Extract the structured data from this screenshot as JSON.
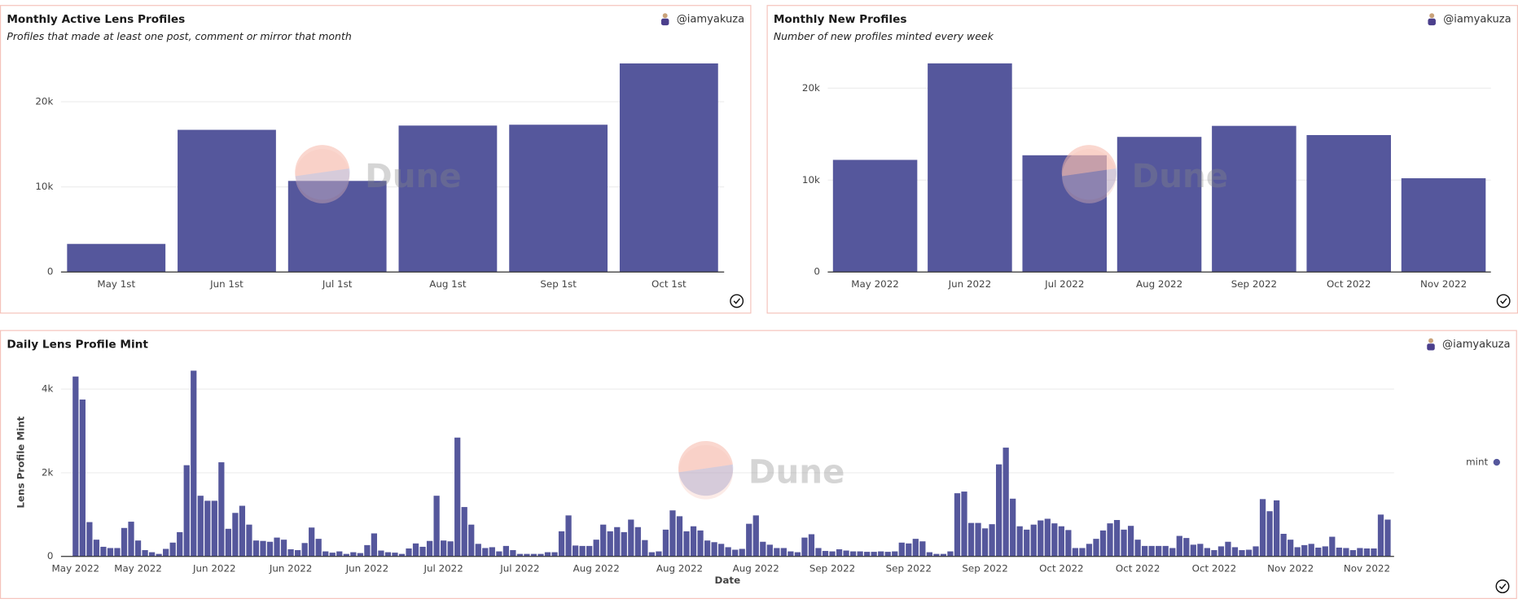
{
  "chart_data": [
    {
      "type": "bar",
      "title": "Monthly Active Lens Profiles",
      "subtitle": "Profiles that made at least one post, comment or mirror that month",
      "author": "@iamyakuza",
      "watermark": "Dune",
      "categories": [
        "May 1st",
        "Jun 1st",
        "Jul 1st",
        "Aug 1st",
        "Sep 1st",
        "Oct 1st"
      ],
      "values": [
        3300,
        16700,
        10700,
        17200,
        17300,
        24500
      ],
      "color": "#55579c",
      "ylim": [
        0,
        25000
      ],
      "yticks": [
        0,
        {
          "value": 10000,
          "label": "10k"
        },
        {
          "value": 20000,
          "label": "20k"
        }
      ],
      "grid": true
    },
    {
      "type": "bar",
      "title": "Monthly New Profiles",
      "subtitle": "Number of new profiles minted every week",
      "author": "@iamyakuza",
      "watermark": "Dune",
      "categories": [
        "May 2022",
        "Jun 2022",
        "Jul 2022",
        "Aug 2022",
        "Sep 2022",
        "Oct 2022",
        "Nov 2022"
      ],
      "values": [
        12200,
        22700,
        12700,
        14700,
        15900,
        14900,
        10200
      ],
      "color": "#55579c",
      "ylim": [
        0,
        23000
      ],
      "yticks": [
        0,
        {
          "value": 10000,
          "label": "10k"
        },
        {
          "value": 20000,
          "label": "20k"
        }
      ],
      "grid": true
    },
    {
      "type": "bar",
      "title": "Daily Lens Profile Mint",
      "author": "@iamyakuza",
      "watermark": "Dune",
      "x_label": "Date",
      "y_label": "Lens Profile Mint",
      "legend": "right",
      "categories": [
        "May 2022",
        null,
        null,
        null,
        null,
        null,
        null,
        null,
        null,
        "May 2022",
        null,
        null,
        null,
        null,
        null,
        null,
        null,
        null,
        null,
        null,
        "Jun 2022",
        null,
        null,
        null,
        null,
        null,
        null,
        null,
        null,
        null,
        null,
        "Jun 2022",
        null,
        null,
        null,
        null,
        null,
        null,
        null,
        null,
        null,
        null,
        "Jun 2022",
        null,
        null,
        null,
        null,
        null,
        null,
        null,
        null,
        null,
        null,
        "Jul 2022",
        null,
        null,
        null,
        null,
        null,
        null,
        null,
        null,
        null,
        null,
        "Jul 2022",
        null,
        null,
        null,
        null,
        null,
        null,
        null,
        null,
        null,
        null,
        "Aug 2022",
        null,
        null,
        null,
        null,
        null,
        null,
        null,
        null,
        null,
        null,
        null,
        "Aug 2022",
        null,
        null,
        null,
        null,
        null,
        null,
        null,
        null,
        null,
        null,
        "Aug 2022",
        null,
        null,
        null,
        null,
        null,
        null,
        null,
        null,
        null,
        null,
        "Sep 2022",
        null,
        null,
        null,
        null,
        null,
        null,
        null,
        null,
        null,
        null,
        "Sep 2022",
        null,
        null,
        null,
        null,
        null,
        null,
        null,
        null,
        null,
        null,
        "Sep 2022",
        null,
        null,
        null,
        null,
        null,
        null,
        null,
        null,
        null,
        null,
        "Oct 2022",
        null,
        null,
        null,
        null,
        null,
        null,
        null,
        null,
        null,
        null,
        "Oct 2022",
        null,
        null,
        null,
        null,
        null,
        null,
        null,
        null,
        null,
        null,
        "Oct 2022",
        null,
        null,
        null,
        null,
        null,
        null,
        null,
        null,
        null,
        null,
        "Nov 2022",
        null,
        null,
        null,
        null,
        null,
        null,
        null,
        null,
        null,
        null,
        "Nov 2022",
        null,
        null,
        null
      ],
      "series": [
        {
          "name": "mint",
          "color": "#55579c",
          "values": [
            4300,
            3750,
            820,
            400,
            230,
            200,
            200,
            680,
            830,
            380,
            150,
            100,
            60,
            180,
            330,
            580,
            2180,
            4440,
            1450,
            1330,
            1330,
            2250,
            660,
            1040,
            1210,
            760,
            380,
            370,
            350,
            450,
            400,
            170,
            150,
            320,
            690,
            420,
            120,
            90,
            120,
            60,
            100,
            80,
            270,
            550,
            140,
            100,
            90,
            60,
            190,
            310,
            230,
            370,
            1450,
            380,
            360,
            2840,
            1180,
            760,
            300,
            200,
            220,
            120,
            250,
            150,
            60,
            60,
            60,
            60,
            100,
            100,
            600,
            980,
            260,
            250,
            250,
            400,
            760,
            600,
            700,
            580,
            880,
            700,
            390,
            100,
            120,
            640,
            1100,
            960,
            600,
            720,
            620,
            380,
            340,
            300,
            220,
            160,
            180,
            780,
            980,
            350,
            280,
            200,
            200,
            120,
            100,
            450,
            530,
            200,
            130,
            120,
            170,
            140,
            120,
            120,
            110,
            110,
            120,
            110,
            120,
            330,
            310,
            420,
            360,
            100,
            60,
            60,
            120,
            1510,
            1550,
            800,
            800,
            670,
            770,
            2200,
            2600,
            1380,
            720,
            640,
            760,
            860,
            900,
            790,
            720,
            630,
            200,
            200,
            300,
            420,
            620,
            790,
            870,
            640,
            730,
            400,
            250,
            250,
            250,
            250,
            200,
            490,
            440,
            280,
            300,
            200,
            150,
            240,
            350,
            220,
            150,
            160,
            240,
            1370,
            1080,
            1340,
            540,
            400,
            220,
            270,
            300,
            210,
            240,
            470,
            210,
            200,
            150,
            200,
            190,
            190,
            1000,
            880
          ]
        }
      ],
      "ylim": [
        0,
        4500
      ],
      "yticks": [
        0,
        {
          "value": 2000,
          "label": "2k"
        },
        {
          "value": 4000,
          "label": "4k"
        }
      ],
      "grid": true
    }
  ]
}
